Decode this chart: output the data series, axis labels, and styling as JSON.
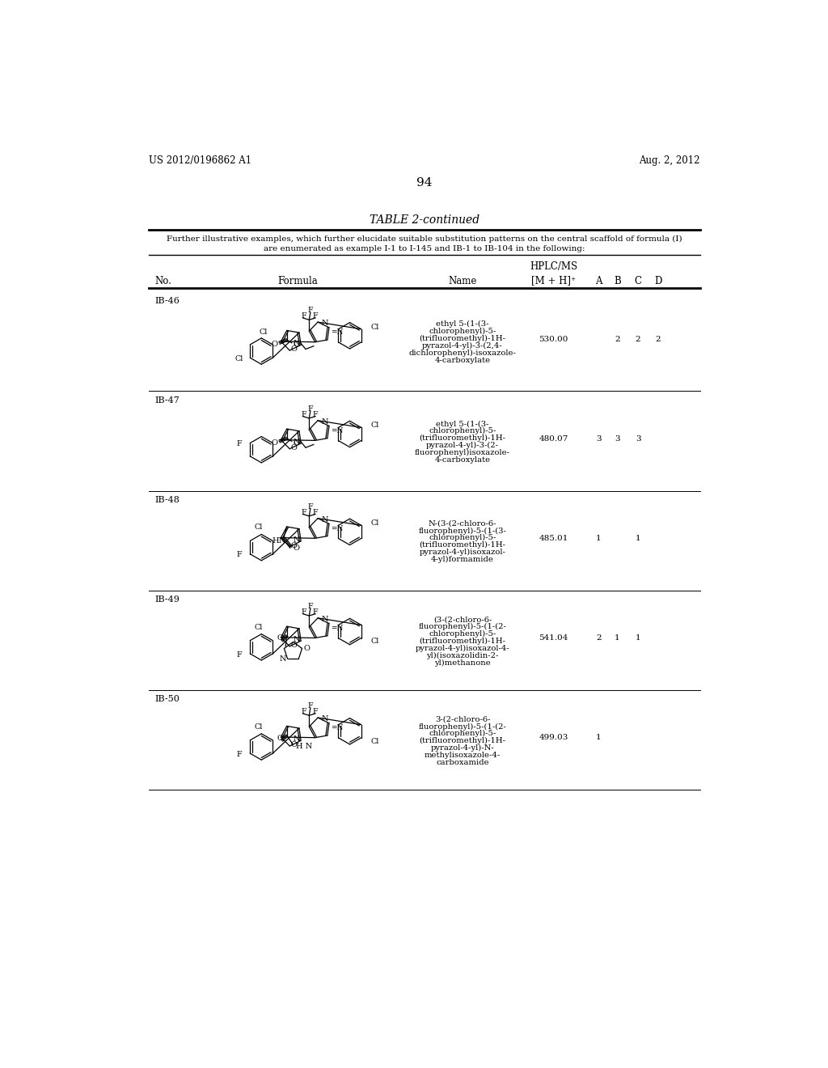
{
  "page_header_left": "US 2012/0196862 A1",
  "page_header_right": "Aug. 2, 2012",
  "page_number": "94",
  "table_title": "TABLE 2-continued",
  "table_subtitle_line1": "Further illustrative examples, which further elucidate suitable substitution patterns on the central scaffold of formula (I)",
  "table_subtitle_line2": "are enumerated as example I-1 to I-145 and IB-1 to IB-104 in the following:",
  "rows": [
    {
      "no": "IB-46",
      "name": "ethyl 5-(1-(3-\nchlorophenyl)-5-\n(trifluoromethyl)-1H-\npyrazol-4-yl)-3-(2,4-\ndichlorophenyl)-isoxazole-\n4-carboxylate",
      "mh": "530.00",
      "A": "",
      "B": "2",
      "C": "2",
      "D": "2"
    },
    {
      "no": "IB-47",
      "name": "ethyl 5-(1-(3-\nchlorophenyl)-5-\n(trifluoromethyl)-1H-\npyrazol-4-yl)-3-(2-\nfluorophenyl)isoxazole-\n4-carboxylate",
      "mh": "480.07",
      "A": "3",
      "B": "3",
      "C": "3",
      "D": ""
    },
    {
      "no": "IB-48",
      "name": "N-(3-(2-chloro-6-\nfluorophenyl)-5-(1-(3-\nchlorophenyl)-5-\n(trifluoromethyl)-1H-\npyrazol-4-yl)isoxazol-\n4-yl)formamide",
      "mh": "485.01",
      "A": "1",
      "B": "",
      "C": "1",
      "D": ""
    },
    {
      "no": "IB-49",
      "name": "(3-(2-chloro-6-\nfluorophenyl)-5-(1-(2-\nchlorophenyl)-5-\n(trifluoromethyl)-1H-\npyrazol-4-yl)isoxazol-4-\nyl)(isoxazolidin-2-\nyl)methanone",
      "mh": "541.04",
      "A": "2",
      "B": "1",
      "C": "1",
      "D": ""
    },
    {
      "no": "IB-50",
      "name": "3-(2-chloro-6-\nfluorophenyl)-5-(1-(2-\nchlorophenyl)-5-\n(trifluoromethyl)-1H-\npyrazol-4-yl)-N-\nmethylisoxazole-4-\ncarboxamide",
      "mh": "499.03",
      "A": "1",
      "B": "",
      "C": "",
      "D": ""
    }
  ],
  "background_color": "#ffffff",
  "text_color": "#000000",
  "line_color": "#000000"
}
